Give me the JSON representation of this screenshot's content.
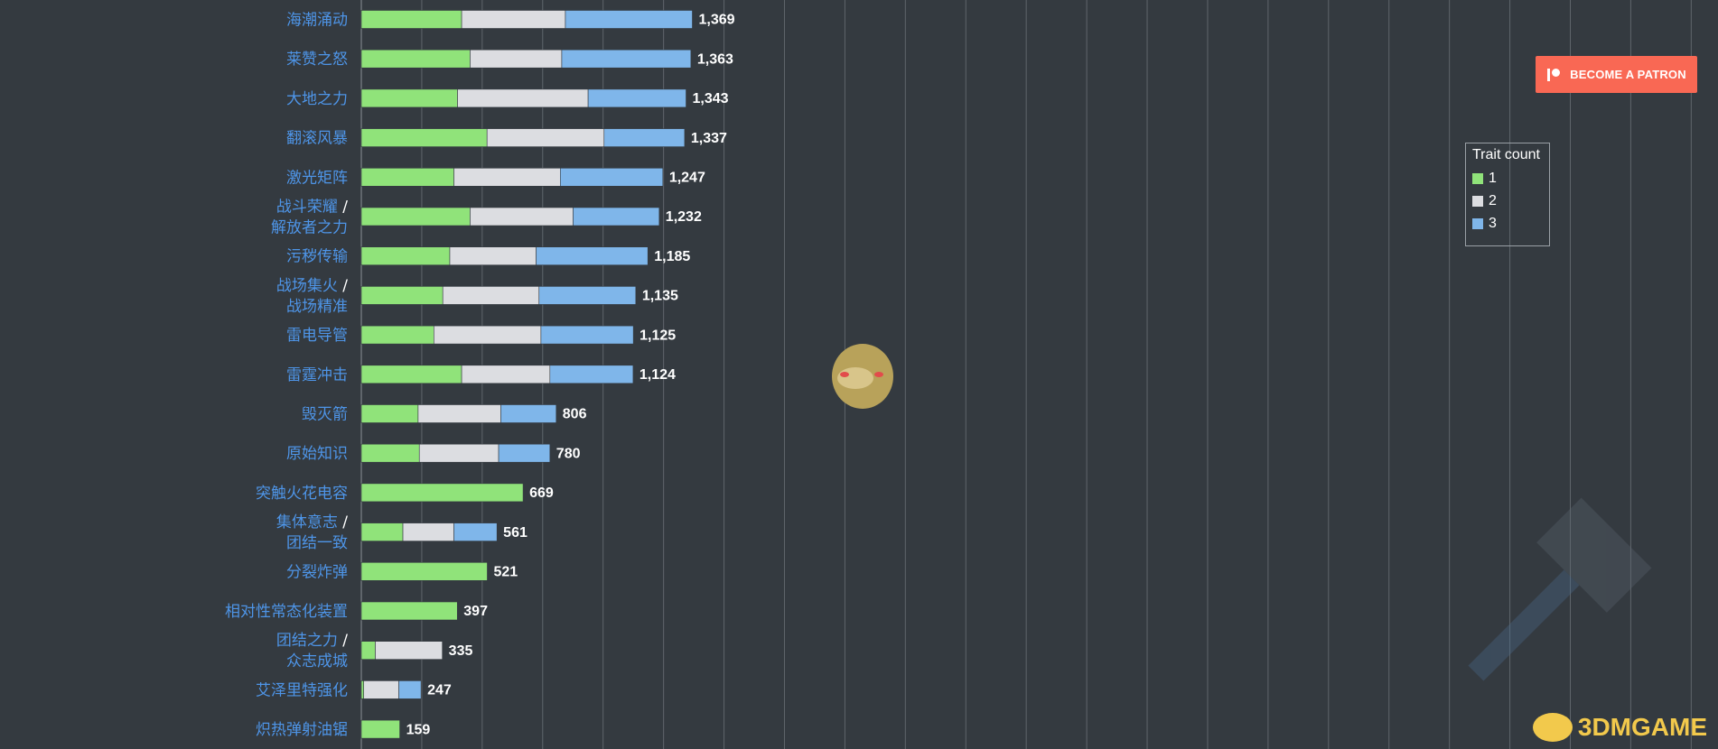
{
  "chart_data": {
    "type": "bar",
    "orientation": "horizontal",
    "stacked": true,
    "legend_title": "Trait count",
    "legend_placement": "top-right",
    "grid": true,
    "categories": [
      [
        "海潮涌动"
      ],
      [
        "莱赞之怒"
      ],
      [
        "大地之力"
      ],
      [
        "翻滚风暴"
      ],
      [
        "激光矩阵"
      ],
      [
        "战斗荣耀 /",
        "解放者之力"
      ],
      [
        "污秽传输"
      ],
      [
        "战场集火 /",
        "战场精准"
      ],
      [
        "雷电导管"
      ],
      [
        "雷霆冲击"
      ],
      [
        "毁灭箭"
      ],
      [
        "原始知识"
      ],
      [
        "突触火花电容"
      ],
      [
        "集体意志 /",
        "团结一致"
      ],
      [
        "分裂炸弹"
      ],
      [
        "相对性常态化装置"
      ],
      [
        "团结之力 /",
        "众志成城"
      ],
      [
        "艾泽里特强化"
      ],
      [
        "炽热弹射油锯"
      ]
    ],
    "series": [
      {
        "name": "1",
        "color": "#90e37a",
        "values": [
          415,
          450,
          398,
          520,
          383,
          450,
          366,
          337,
          300,
          415,
          235,
          240,
          669,
          172,
          521,
          397,
          58,
          10,
          159
        ]
      },
      {
        "name": "2",
        "color": "#dcdde1",
        "values": [
          429,
          379,
          540,
          484,
          440,
          426,
          357,
          398,
          443,
          365,
          342,
          328,
          0,
          211,
          0,
          0,
          277,
          145,
          0
        ]
      },
      {
        "name": "3",
        "color": "#7fb6ea",
        "values": [
          525,
          534,
          405,
          333,
          424,
          356,
          462,
          400,
          382,
          344,
          229,
          212,
          0,
          178,
          0,
          0,
          0,
          92,
          0
        ]
      }
    ],
    "totals": [
      "1,369",
      "1,363",
      "1,343",
      "1,337",
      "1,247",
      "1,232",
      "1,185",
      "1,135",
      "1,125",
      "1,124",
      "806",
      "780",
      "669",
      "561",
      "521",
      "397",
      "335",
      "247",
      "159"
    ],
    "xlim": [
      0,
      7000
    ],
    "grid_step": 250
  },
  "patron_button": {
    "label": "BECOME A PATRON"
  },
  "watermark": {
    "text": "3DMGAME"
  },
  "colors": {
    "background": "#343a40",
    "label": "#4e95e8",
    "gridline": "#5f656b"
  }
}
